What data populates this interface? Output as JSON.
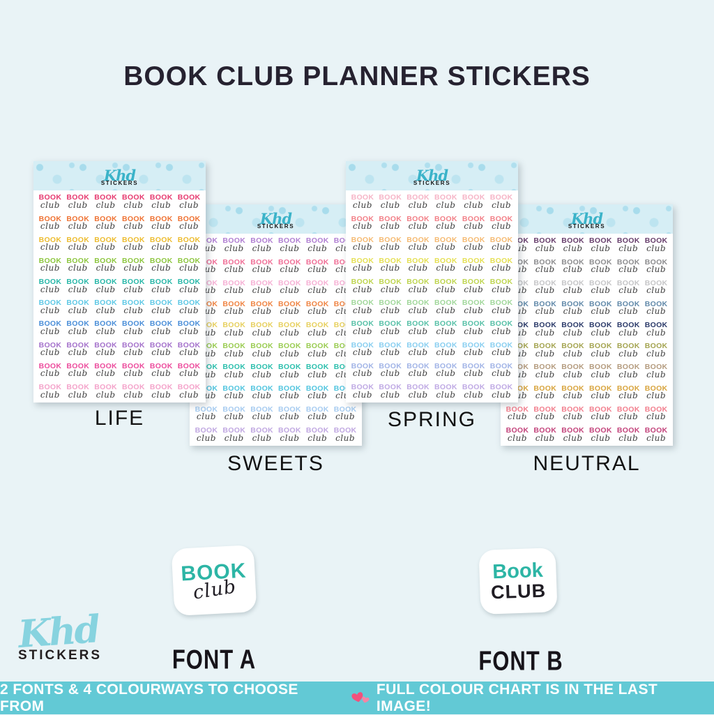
{
  "title": "BOOK CLUB PLANNER STICKERS",
  "grid": {
    "rows": 10,
    "cols": 6
  },
  "sticker_text": {
    "line1": "BOOK",
    "line2": "club",
    "line2_color": "#404040"
  },
  "sheet_header": {
    "brand_script": "Khd",
    "brand_caps": "STICKERS",
    "background": "#d6eef5"
  },
  "sheets": [
    {
      "id": "life",
      "label": "LIFE",
      "colors": [
        "#e6396f",
        "#ef7233",
        "#edbc2f",
        "#8dc63f",
        "#28b7a8",
        "#5ec8e5",
        "#4a8ed8",
        "#a471cb",
        "#ec4b9c",
        "#f4a3ca"
      ]
    },
    {
      "id": "sweets",
      "label": "SWEETS",
      "colors": [
        "#b07ed2",
        "#f06e96",
        "#f6b0d4",
        "#ef8443",
        "#e7d05e",
        "#9acc51",
        "#2cbfad",
        "#51c5df",
        "#a6cbf0",
        "#c0a7e1"
      ]
    },
    {
      "id": "spring",
      "label": "SPRING",
      "colors": [
        "#f6b4c6",
        "#f27f87",
        "#f5ba72",
        "#e5e054",
        "#bed54f",
        "#a0d79a",
        "#57c0a7",
        "#88cef0",
        "#a0b3e6",
        "#bfa9e4"
      ]
    },
    {
      "id": "neutral",
      "label": "NEUTRAL",
      "colors": [
        "#663d6b",
        "#8c8c8e",
        "#c5c5c7",
        "#6189a9",
        "#2b3a69",
        "#a4a450",
        "#b49b7e",
        "#d8a43d",
        "#f27e8d",
        "#c3437b"
      ]
    }
  ],
  "font_samples": [
    {
      "id": "a",
      "label": "FONT A",
      "line1": "BOOK",
      "line2": "club",
      "accent_color": "#2db5a5"
    },
    {
      "id": "b",
      "label": "FONT B",
      "line1": "Book",
      "line2": "CLUB",
      "accent_color": "#2db5a5"
    }
  ],
  "brand_logo": {
    "script": "Khd",
    "caps": "STICKERS"
  },
  "footer": {
    "text_before": "2 FONTS & 4 COLOURWAYS TO CHOOSE FROM",
    "heart": "💕",
    "text_after": "FULL COLOUR CHART IS IN THE LAST IMAGE!",
    "background": "#62c9d5",
    "heart_color": "#f2517c"
  }
}
